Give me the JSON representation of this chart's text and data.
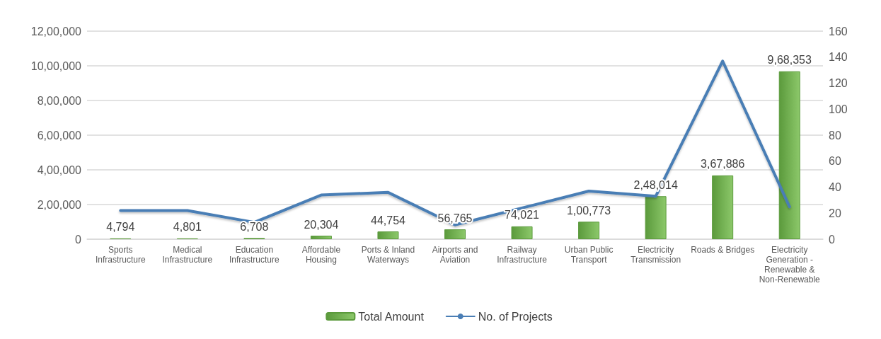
{
  "chart_data": {
    "type": "bar",
    "categories": [
      "Sports\nInfrastructure",
      "Medical\nInfrastructure",
      "Education\nInfrastructure",
      "Affordable\nHousing",
      "Ports & Inland\nWaterways",
      "Airports and\nAviation",
      "Railway\nInfrastructure",
      "Urban Public\nTransport",
      "Electricity\nTransmission",
      "Roads & Bridges",
      "Electricity\nGeneration -\nRenewable &\nNon-Renewable"
    ],
    "series": [
      {
        "name": "Total Amount",
        "color": "#5b9a3c",
        "values": [
          4794,
          4801,
          6708,
          20304,
          44754,
          56765,
          74021,
          100773,
          248014,
          367886,
          968353
        ],
        "value_labels": [
          "4,794",
          "4,801",
          "6,708",
          "20,304",
          "44,754",
          "56,765",
          "74,021",
          "1,00,773",
          "2,48,014",
          "3,67,886",
          "9,68,353"
        ]
      },
      {
        "name": "No. of Projects",
        "type": "line",
        "axis": "y2",
        "color": "#4a7eb5",
        "values": [
          22,
          22,
          13,
          34,
          36,
          11,
          24,
          37,
          33,
          137,
          25
        ]
      }
    ],
    "ylim": [
      0,
      1200000
    ],
    "yticks": [
      {
        "value": 0,
        "label": "0"
      },
      {
        "value": 200000,
        "label": "2,00,000"
      },
      {
        "value": 400000,
        "label": "4,00,000"
      },
      {
        "value": 600000,
        "label": "6,00,000"
      },
      {
        "value": 800000,
        "label": "8,00,000"
      },
      {
        "value": 1000000,
        "label": "10,00,000"
      },
      {
        "value": 1200000,
        "label": "12,00,000"
      }
    ],
    "y2lim": [
      0,
      160
    ],
    "y2ticks": [
      0,
      20,
      40,
      60,
      80,
      100,
      120,
      140,
      160
    ],
    "grid": "y",
    "legend": "bottom",
    "marker": "none",
    "line_style": "solid"
  }
}
